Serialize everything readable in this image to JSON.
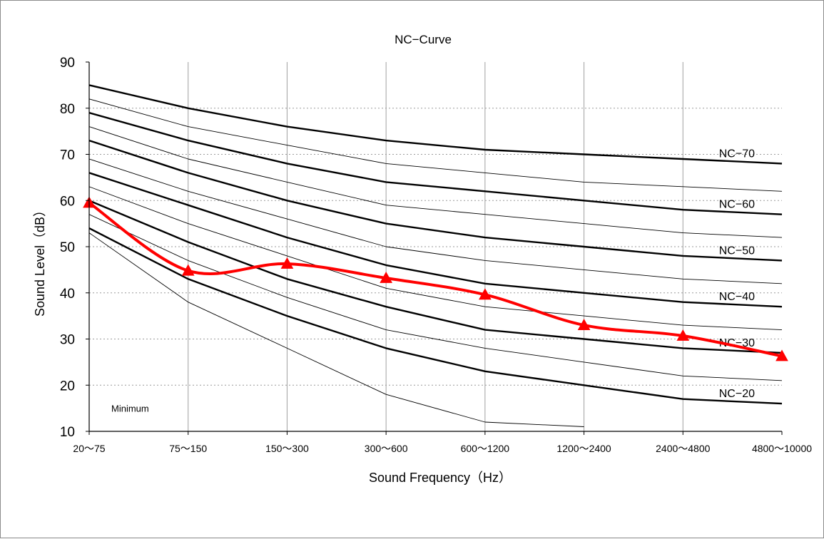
{
  "chart_data": {
    "type": "line",
    "title": "NC−Curve",
    "xlabel": "Sound Frequency（Hz）",
    "ylabel": "Sound Level（dB）",
    "categories": [
      "20～75",
      "75～150",
      "150～300",
      "300～600",
      "600～1200",
      "1200～2400",
      "2400～4800",
      "4800～10000"
    ],
    "y_ticks": [
      "10",
      "20",
      "30",
      "40",
      "50",
      "60",
      "70",
      "80",
      "90"
    ],
    "ylim": [
      10,
      90
    ],
    "grid": "vertical lines at each band, dotted horizontal lines at each tick",
    "annotations": [
      "Minimum"
    ],
    "nc_reference_curves": [
      {
        "name": "NC-70",
        "label": "NC−70",
        "bold": true,
        "values": [
          85,
          80,
          76,
          73,
          71,
          70,
          69,
          68
        ]
      },
      {
        "name": "NC-65",
        "bold": false,
        "values": [
          82,
          76,
          72,
          68,
          66,
          64,
          63,
          62
        ]
      },
      {
        "name": "NC-60",
        "label": "NC−60",
        "bold": true,
        "values": [
          79,
          73,
          68,
          64,
          62,
          60,
          58,
          57
        ]
      },
      {
        "name": "NC-55",
        "bold": false,
        "values": [
          76,
          69,
          64,
          59,
          57,
          55,
          53,
          52
        ]
      },
      {
        "name": "NC-50",
        "label": "NC−50",
        "bold": true,
        "values": [
          73,
          66,
          60,
          55,
          52,
          50,
          48,
          47
        ]
      },
      {
        "name": "NC-45",
        "bold": false,
        "values": [
          69,
          62,
          56,
          50,
          47,
          45,
          43,
          42
        ]
      },
      {
        "name": "NC-40",
        "label": "NC−40",
        "bold": true,
        "values": [
          66,
          59,
          52,
          46,
          42,
          40,
          38,
          37
        ]
      },
      {
        "name": "NC-35",
        "bold": false,
        "values": [
          63,
          55,
          48,
          41,
          37,
          35,
          33,
          32
        ]
      },
      {
        "name": "NC-30",
        "label": "NC−30",
        "bold": true,
        "values": [
          60,
          51,
          43,
          37,
          32,
          30,
          28,
          27
        ]
      },
      {
        "name": "NC-25",
        "bold": false,
        "values": [
          57,
          47,
          39,
          32,
          28,
          25,
          22,
          21
        ]
      },
      {
        "name": "NC-20",
        "label": "NC−20",
        "bold": true,
        "values": [
          54,
          43,
          35,
          28,
          23,
          20,
          17,
          16
        ]
      },
      {
        "name": "Minimum",
        "bold": false,
        "values": [
          53,
          38,
          28,
          18,
          12,
          11,
          null,
          null
        ]
      }
    ],
    "series": [
      {
        "values": [
          59.5,
          44.8,
          46.3,
          43.2,
          39.6,
          33.0,
          30.7,
          26.3
        ],
        "color": "#ff0000",
        "marker": "triangle"
      }
    ]
  }
}
